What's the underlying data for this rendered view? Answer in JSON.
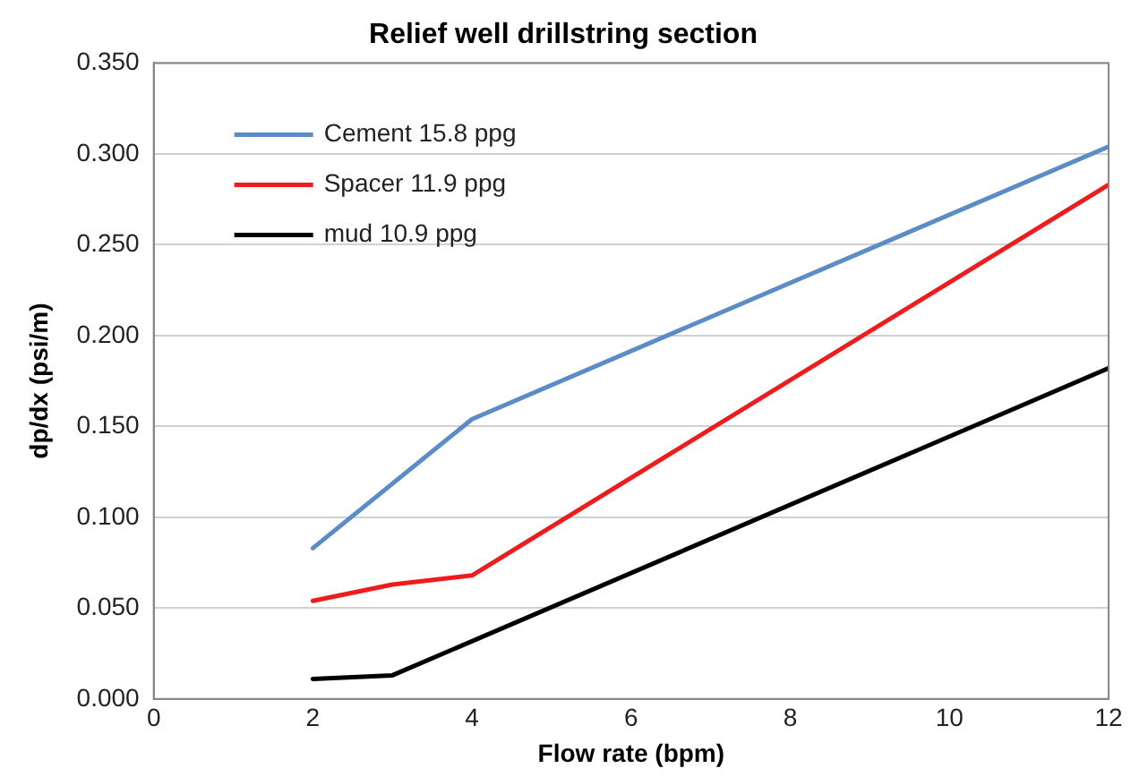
{
  "chart_data": {
    "type": "line",
    "title": "Relief well drillstring section",
    "xlabel": "Flow rate (bpm)",
    "ylabel": "dp/dx (psi/m)",
    "xlim": [
      0,
      12
    ],
    "xticks": [
      0,
      2,
      4,
      6,
      8,
      10,
      12
    ],
    "ylim": [
      0,
      0.35
    ],
    "yticks": [
      {
        "value": 0,
        "label": "0.000"
      },
      {
        "value": 0.05,
        "label": "0.050"
      },
      {
        "value": 0.1,
        "label": "0.100"
      },
      {
        "value": 0.15,
        "label": "0.150"
      },
      {
        "value": 0.2,
        "label": "0.200"
      },
      {
        "value": 0.25,
        "label": "0.250"
      },
      {
        "value": 0.3,
        "label": "0.300"
      },
      {
        "value": 0.35,
        "label": "0.350"
      }
    ],
    "grid": "y",
    "legend": "top left",
    "marker": "none",
    "line_style": "solid",
    "series": [
      {
        "name": "Cement 15.8 ppg",
        "color": "#5b8cc8",
        "x": [
          2,
          4,
          12
        ],
        "values": [
          0.083,
          0.154,
          0.304
        ]
      },
      {
        "name": "Spacer 11.9 ppg",
        "color": "#ee1c1c",
        "x": [
          2,
          3,
          4,
          12
        ],
        "values": [
          0.054,
          0.063,
          0.068,
          0.283
        ]
      },
      {
        "name": "mud 10.9 ppg",
        "color": "#000000",
        "x": [
          2,
          3,
          12
        ],
        "values": [
          0.011,
          0.013,
          0.182
        ]
      }
    ]
  }
}
